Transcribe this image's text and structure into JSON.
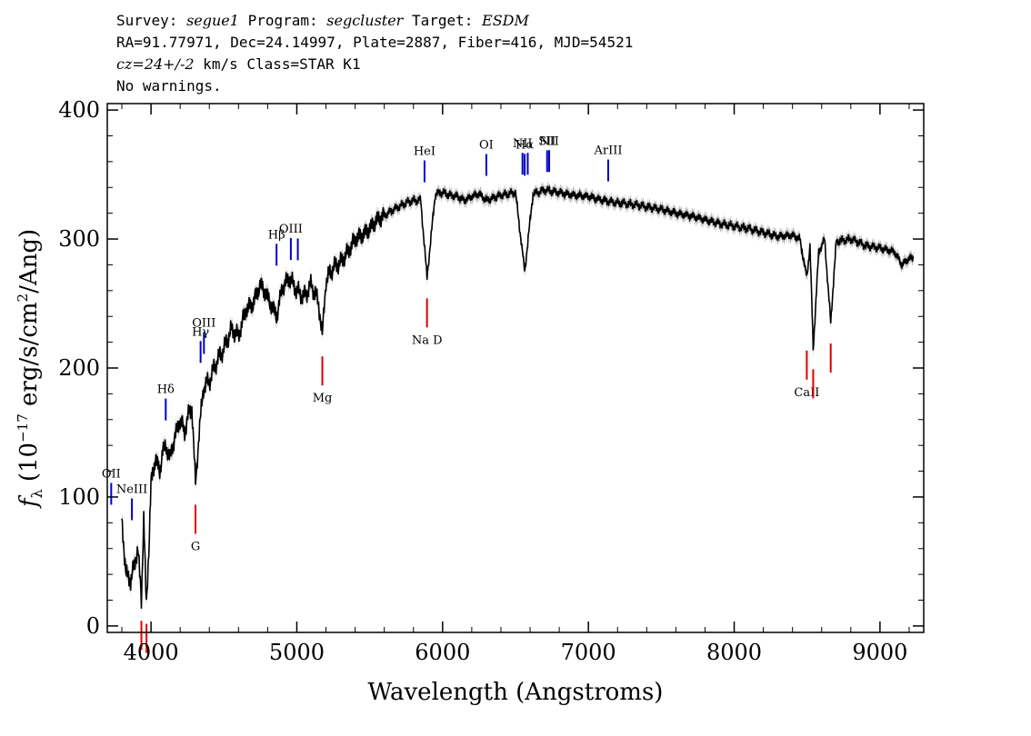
{
  "header": {
    "line1": {
      "survey_label": "Survey: ",
      "survey": "segue1",
      "program_label": " Program: ",
      "program": "segcluster",
      "target_label": " Target: ",
      "target": "ESDM"
    },
    "line2": "RA=91.77971, Dec=24.14997, Plate=2887, Fiber=416, MJD=54521",
    "line3": {
      "cz": "cz=24+/-2",
      "rest": " km/s Class=STAR K1"
    },
    "line4": "No warnings."
  },
  "chart_data": {
    "type": "line",
    "xlabel": "Wavelength (Angstroms)",
    "ylabel": "f_λ (10^-17 erg/s/cm^2/Ang)",
    "ylabel_parts": {
      "f": "f",
      "lambda": "λ",
      "open": " (10",
      "exp1": "−17",
      "mid": " erg/s/cm",
      "exp2": "2",
      "close": "/Ang)"
    },
    "xlim": [
      3700,
      9300
    ],
    "ylim": [
      -5,
      405
    ],
    "xticks": [
      4000,
      5000,
      6000,
      7000,
      8000,
      9000
    ],
    "yticks": [
      0,
      100,
      200,
      300,
      400
    ],
    "colors": {
      "spectrum": "#000000",
      "error_band": "#b4b4b4",
      "emission": "#0000cc",
      "absorption": "#dd0000"
    },
    "series": [
      {
        "x": [
          3800,
          3830,
          3860,
          3890,
          3910,
          3934,
          3950,
          3968,
          3985,
          4000,
          4030,
          4060,
          4080,
          4101,
          4130,
          4160,
          4200,
          4230,
          4260,
          4280,
          4305,
          4330,
          4360,
          4400,
          4450,
          4500,
          4550,
          4600,
          4650,
          4700,
          4750,
          4800,
          4861,
          4900,
          4950,
          5000,
          5050,
          5100,
          5150,
          5175,
          5200,
          5250,
          5300,
          5350,
          5400,
          5450,
          5500,
          5550,
          5600,
          5650,
          5700,
          5750,
          5800,
          5850,
          5893,
          5950,
          6000,
          6050,
          6100,
          6150,
          6200,
          6250,
          6300,
          6350,
          6400,
          6450,
          6500,
          6563,
          6620,
          6700,
          6800,
          6900,
          7000,
          7100,
          7200,
          7300,
          7400,
          7500,
          7600,
          7700,
          7800,
          7900,
          8000,
          8100,
          8200,
          8300,
          8400,
          8450,
          8498,
          8520,
          8542,
          8580,
          8620,
          8662,
          8700,
          8800,
          8900,
          9000,
          9100,
          9150,
          9200,
          9230
        ],
        "y": [
          80,
          40,
          35,
          50,
          60,
          20,
          85,
          15,
          60,
          110,
          130,
          120,
          135,
          140,
          130,
          145,
          160,
          150,
          165,
          170,
          110,
          150,
          185,
          190,
          205,
          215,
          230,
          225,
          245,
          250,
          265,
          255,
          240,
          262,
          270,
          260,
          255,
          265,
          250,
          225,
          268,
          278,
          282,
          290,
          300,
          303,
          308,
          315,
          318,
          322,
          325,
          328,
          330,
          330,
          270,
          335,
          336,
          334,
          333,
          330,
          333,
          335,
          330,
          332,
          334,
          335,
          336,
          275,
          335,
          338,
          336,
          334,
          333,
          330,
          328,
          327,
          325,
          323,
          320,
          318,
          315,
          312,
          310,
          308,
          305,
          302,
          303,
          300,
          270,
          295,
          215,
          290,
          300,
          235,
          298,
          300,
          295,
          293,
          290,
          280,
          285,
          285
        ]
      }
    ],
    "emission_lines": [
      {
        "label": "OII",
        "wave": 3727
      },
      {
        "label": "NeIII",
        "wave": 3869
      },
      {
        "label": "Hδ",
        "wave": 4101
      },
      {
        "label": "Hγ",
        "wave": 4340
      },
      {
        "label": "OIII",
        "wave": 4363
      },
      {
        "label": "Hβ",
        "wave": 4861
      },
      {
        "label": "OIII",
        "wave": 4959
      },
      {
        "label": "",
        "wave": 5007
      },
      {
        "label": "HeI",
        "wave": 5876
      },
      {
        "label": "OI",
        "wave": 6300
      },
      {
        "label": "NII",
        "wave": 6548
      },
      {
        "label": "Hα",
        "wave": 6563
      },
      {
        "label": "",
        "wave": 6584
      },
      {
        "label": "SII",
        "wave": 6717
      },
      {
        "label": "NII",
        "wave": 6731
      },
      {
        "label": "ArIII",
        "wave": 7136
      }
    ],
    "absorption_lines": [
      {
        "label": "",
        "wave": 3934
      },
      {
        "label": "",
        "wave": 3969
      },
      {
        "label": "G",
        "wave": 4305
      },
      {
        "label": "Mg",
        "wave": 5175
      },
      {
        "label": "Na D",
        "wave": 5893
      },
      {
        "label": "CaII",
        "wave": 8498
      },
      {
        "label": "",
        "wave": 8542
      },
      {
        "label": "",
        "wave": 8662
      }
    ]
  }
}
